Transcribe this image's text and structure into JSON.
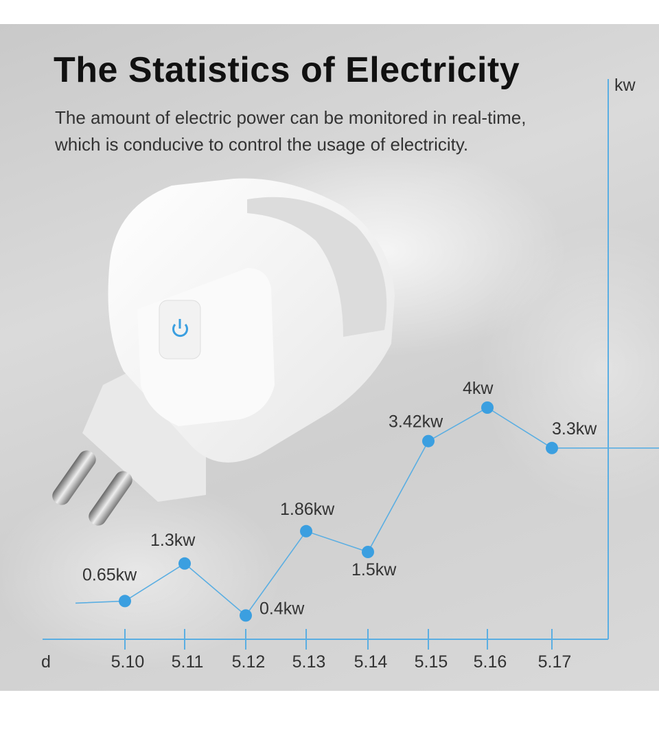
{
  "header": {
    "title": "The Statistics of Electricity",
    "subtitle_line1": "The amount of electric power can be monitored in real-time,",
    "subtitle_line2": "which is conducive to control the usage of electricity."
  },
  "colors": {
    "line": "#5aaee2",
    "dot": "#3b9fe0",
    "axis": "#5aaee2",
    "power_icon": "#3b9fe0"
  },
  "product": {
    "icon": "power-icon"
  },
  "chart_data": {
    "type": "line",
    "xlabel": "d",
    "ylabel": "kw",
    "categories": [
      "5.10",
      "5.11",
      "5.12",
      "5.13",
      "5.14",
      "5.15",
      "5.16",
      "5.17"
    ],
    "values": [
      0.65,
      1.3,
      0.4,
      1.86,
      1.5,
      3.42,
      4,
      3.3
    ],
    "data_labels": [
      "0.65kw",
      "1.3kw",
      "0.4kw",
      "1.86kw",
      "1.5kw",
      "3.42kw",
      "4kw",
      "3.3kw"
    ],
    "grid": false,
    "legend": "none"
  }
}
